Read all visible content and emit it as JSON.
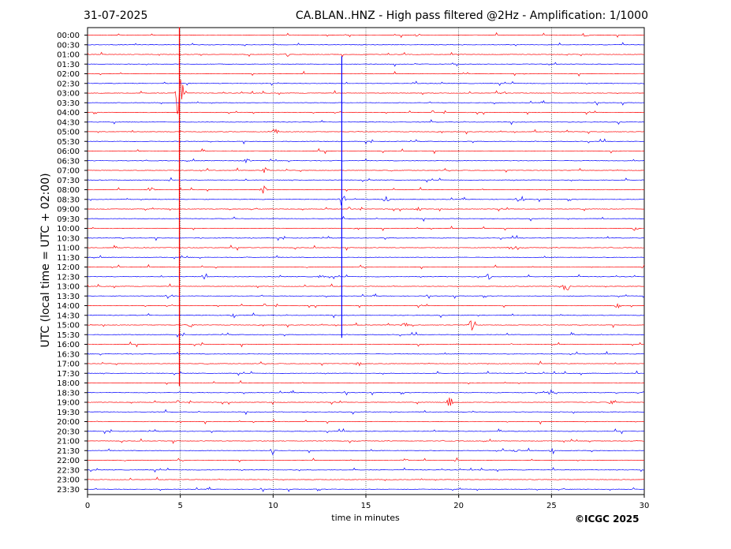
{
  "header": {
    "date": "31-07-2025",
    "title": "CA.BLAN..HNZ - High pass filtered @2Hz - Amplification: 1/1000"
  },
  "copyright": "©ICGC 2025",
  "chart_data": {
    "type": "seismogram",
    "title": "CA.BLAN..HNZ - High pass filtered @2Hz - Amplification: 1/1000",
    "xlabel": "time in minutes",
    "ylabel": "UTC (local time = UTC + 02:00)",
    "xlim": [
      0,
      30
    ],
    "x_ticks": [
      0,
      5,
      10,
      15,
      20,
      25,
      30
    ],
    "grid": "vertical dotted lines at each x tick",
    "trace_colors": [
      "#ff0000",
      "#0000ff"
    ],
    "rows": [
      "00:00",
      "00:30",
      "01:00",
      "01:30",
      "02:00",
      "02:30",
      "03:00",
      "03:30",
      "04:00",
      "04:30",
      "05:00",
      "05:30",
      "06:00",
      "06:30",
      "07:00",
      "07:30",
      "08:00",
      "08:30",
      "09:00",
      "09:30",
      "10:00",
      "10:30",
      "11:00",
      "11:30",
      "12:00",
      "12:30",
      "13:00",
      "13:30",
      "14:00",
      "14:30",
      "15:00",
      "15:30",
      "16:00",
      "16:30",
      "17:00",
      "17:30",
      "18:00",
      "18:30",
      "19:00",
      "19:30",
      "20:00",
      "20:30",
      "21:00",
      "21:30",
      "22:00",
      "22:30",
      "23:00",
      "23:30"
    ],
    "events": [
      {
        "row": "00:00",
        "minute": 26.8,
        "amplitude": 0.6
      },
      {
        "row": "00:00",
        "minute": 17.8,
        "amplitude": 0.3
      },
      {
        "row": "01:00",
        "minute": 10.8,
        "amplitude": 0.4
      },
      {
        "row": "03:00",
        "minute": 22.4,
        "amplitude": 0.4
      },
      {
        "row": "03:00",
        "minute": 4.95,
        "amplitude": 7.0
      },
      {
        "row": "05:00",
        "minute": 10.1,
        "amplitude": 0.5
      },
      {
        "row": "06:30",
        "minute": 8.6,
        "amplitude": 0.4
      },
      {
        "row": "07:00",
        "minute": 9.6,
        "amplitude": 0.5
      },
      {
        "row": "08:00",
        "minute": 3.4,
        "amplitude": 0.6
      },
      {
        "row": "08:00",
        "minute": 9.5,
        "amplitude": 1.0
      },
      {
        "row": "08:30",
        "minute": 13.7,
        "amplitude": 1.2
      },
      {
        "row": "08:30",
        "minute": 16.1,
        "amplitude": 0.8
      },
      {
        "row": "08:30",
        "minute": 23.4,
        "amplitude": 0.5
      },
      {
        "row": "09:00",
        "minute": 17.8,
        "amplitude": 0.5
      },
      {
        "row": "10:00",
        "minute": 29.5,
        "amplitude": 0.4
      },
      {
        "row": "11:00",
        "minute": 22.8,
        "amplitude": 0.4
      },
      {
        "row": "12:30",
        "minute": 6.3,
        "amplitude": 0.5
      },
      {
        "row": "12:30",
        "minute": 12.6,
        "amplitude": 0.4
      },
      {
        "row": "12:30",
        "minute": 21.6,
        "amplitude": 0.5
      },
      {
        "row": "13:00",
        "minute": 25.8,
        "amplitude": 1.0
      },
      {
        "row": "13:30",
        "minute": 4.4,
        "amplitude": 0.5
      },
      {
        "row": "14:00",
        "minute": 28.6,
        "amplitude": 0.6
      },
      {
        "row": "14:30",
        "minute": 7.9,
        "amplitude": 0.4
      },
      {
        "row": "15:00",
        "minute": 5.6,
        "amplitude": 0.5
      },
      {
        "row": "15:00",
        "minute": 17.1,
        "amplitude": 0.5
      },
      {
        "row": "15:00",
        "minute": 20.7,
        "amplitude": 0.9
      },
      {
        "row": "16:00",
        "minute": 6.1,
        "amplitude": 0.4
      },
      {
        "row": "17:00",
        "minute": 14.6,
        "amplitude": 0.4
      },
      {
        "row": "18:30",
        "minute": 25.0,
        "amplitude": 0.6
      },
      {
        "row": "19:00",
        "minute": 19.5,
        "amplitude": 1.0
      },
      {
        "row": "19:00",
        "minute": 28.2,
        "amplitude": 0.4
      },
      {
        "row": "21:30",
        "minute": 10.0,
        "amplitude": 0.5
      },
      {
        "row": "21:30",
        "minute": 23.1,
        "amplitude": 0.5
      },
      {
        "row": "21:30",
        "minute": 25.1,
        "amplitude": 0.5
      },
      {
        "row": "22:00",
        "minute": 17.1,
        "amplitude": 0.3
      }
    ],
    "spikes": [
      {
        "from_row": "00:00",
        "to_row": "18:00",
        "minute": 4.95
      },
      {
        "from_row": "01:30",
        "to_row": "15:30",
        "minute": 13.7
      }
    ]
  }
}
